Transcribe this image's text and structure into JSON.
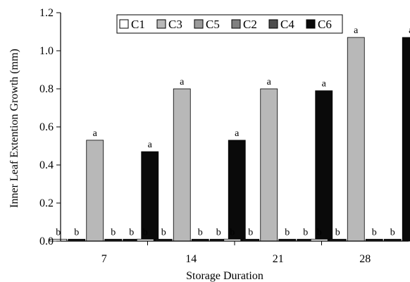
{
  "chart_data": {
    "type": "bar",
    "xlabel": "Storage Duration",
    "ylabel": "Inner Leaf Extention Growth (mm)",
    "categories": [
      "7",
      "14",
      "21",
      "28"
    ],
    "ylim": [
      0,
      1.2
    ],
    "yticks": [
      "0.0",
      "0.2",
      "0.4",
      "0.6",
      "0.8",
      "1.0",
      "1.2"
    ],
    "legend_position": "top-center",
    "series": [
      {
        "name": "C1",
        "color": "#ffffff",
        "values": [
          0.01,
          0.01,
          0.01,
          0.01
        ],
        "labels": [
          "b",
          "b",
          "b",
          "b"
        ]
      },
      {
        "name": "C3",
        "color": "#1a1a1a",
        "values": [
          0.01,
          0.01,
          0.01,
          0.01
        ],
        "labels": [
          "b",
          "b",
          "b",
          "b"
        ]
      },
      {
        "name": "C5",
        "color": "#b8b8b8",
        "values": [
          0.53,
          0.8,
          0.8,
          1.07
        ],
        "labels": [
          "a",
          "a",
          "a",
          "a"
        ]
      },
      {
        "name": "C2",
        "color": "#1a1a1a",
        "values": [
          0.01,
          0.01,
          0.01,
          0.01
        ],
        "labels": [
          "b",
          "b",
          "b",
          "b"
        ]
      },
      {
        "name": "C4",
        "color": "#1a1a1a",
        "values": [
          0.01,
          0.01,
          0.01,
          0.01
        ],
        "labels": [
          "b",
          "b",
          "b",
          "b"
        ]
      },
      {
        "name": "C6",
        "color": "#0a0a0a",
        "values": [
          0.47,
          0.53,
          0.79,
          1.07
        ],
        "labels": [
          "a",
          "a",
          "a",
          "a"
        ]
      }
    ],
    "legend_swatches": [
      "#ffffff",
      "#b8b8b8",
      "#9a9a9a",
      "#808080",
      "#4d4d4d",
      "#0a0a0a"
    ]
  }
}
